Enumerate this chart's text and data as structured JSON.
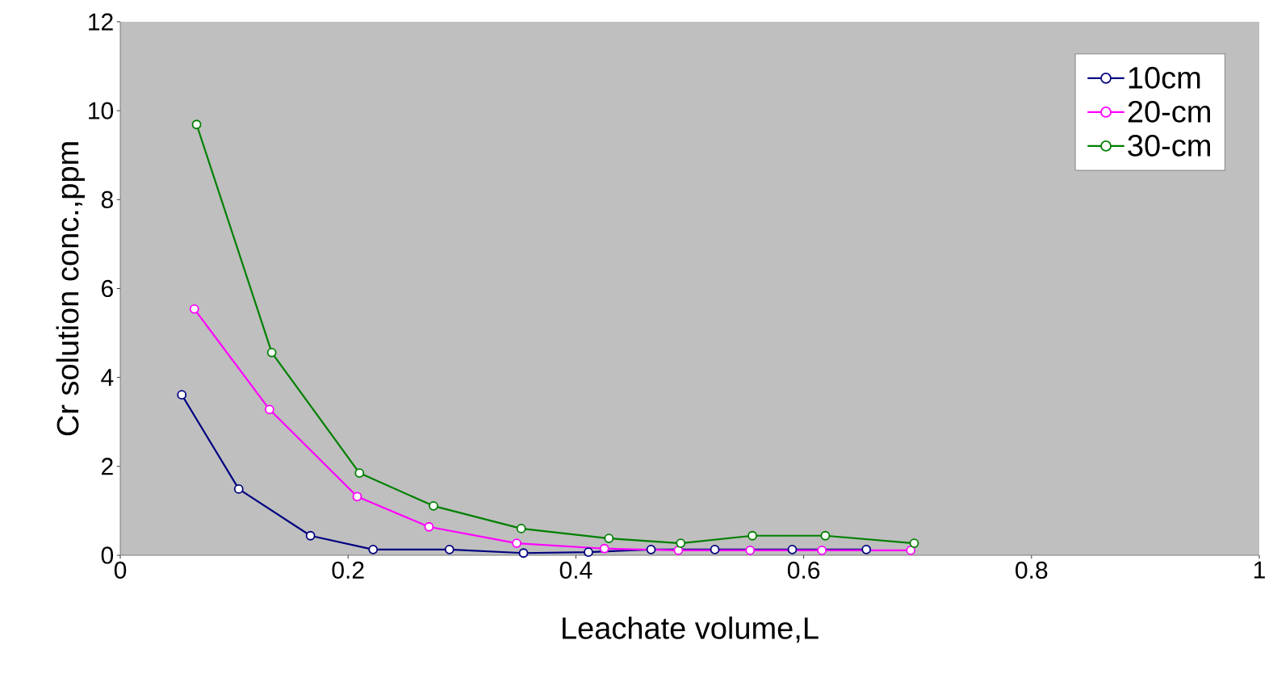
{
  "chart_data": {
    "type": "line",
    "xlabel": "Leachate volume,L",
    "ylabel": "Cr solution conc.,ppm",
    "xlim": [
      0,
      1
    ],
    "ylim": [
      0,
      12
    ],
    "xticks": [
      0,
      0.2,
      0.4,
      0.6,
      0.8,
      1
    ],
    "yticks": [
      0,
      2,
      4,
      6,
      8,
      10,
      12
    ],
    "grid": false,
    "legend": "top right",
    "marker": "circle",
    "line_style": "solid",
    "series": [
      {
        "name": "10cm",
        "color": "#000080",
        "x": [
          0.054,
          0.104,
          0.167,
          0.222,
          0.289,
          0.354,
          0.411,
          0.466,
          0.522,
          0.59,
          0.655
        ],
        "values": [
          3.61,
          1.49,
          0.44,
          0.13,
          0.13,
          0.05,
          0.07,
          0.13,
          0.13,
          0.13,
          0.13
        ]
      },
      {
        "name": "20-cm",
        "color": "#ff00ff",
        "x": [
          0.065,
          0.131,
          0.208,
          0.271,
          0.348,
          0.425,
          0.49,
          0.553,
          0.616,
          0.694
        ],
        "values": [
          5.54,
          3.28,
          1.32,
          0.64,
          0.27,
          0.15,
          0.11,
          0.11,
          0.11,
          0.11
        ]
      },
      {
        "name": "30-cm",
        "color": "#008000",
        "x": [
          0.067,
          0.133,
          0.21,
          0.275,
          0.352,
          0.429,
          0.492,
          0.555,
          0.619,
          0.697
        ],
        "values": [
          9.69,
          4.56,
          1.85,
          1.11,
          0.6,
          0.38,
          0.27,
          0.44,
          0.44,
          0.27
        ]
      }
    ]
  }
}
